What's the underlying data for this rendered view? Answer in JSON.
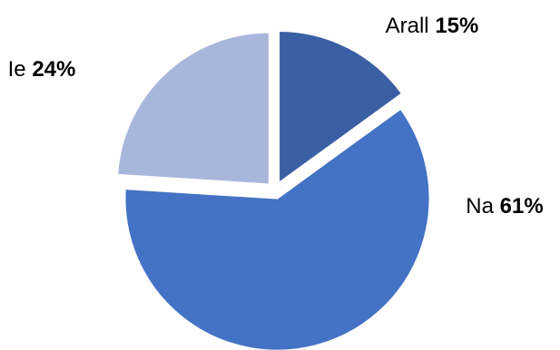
{
  "chart_data": {
    "type": "pie",
    "categories": [
      "Arall",
      "Na",
      "Ie"
    ],
    "values": [
      15,
      61,
      24
    ],
    "value_labels": [
      "15%",
      "61%",
      "24%"
    ],
    "colors": [
      "#3A5FA5",
      "#4472C4",
      "#A9B6DC"
    ],
    "exploded": true,
    "legend": "none"
  }
}
